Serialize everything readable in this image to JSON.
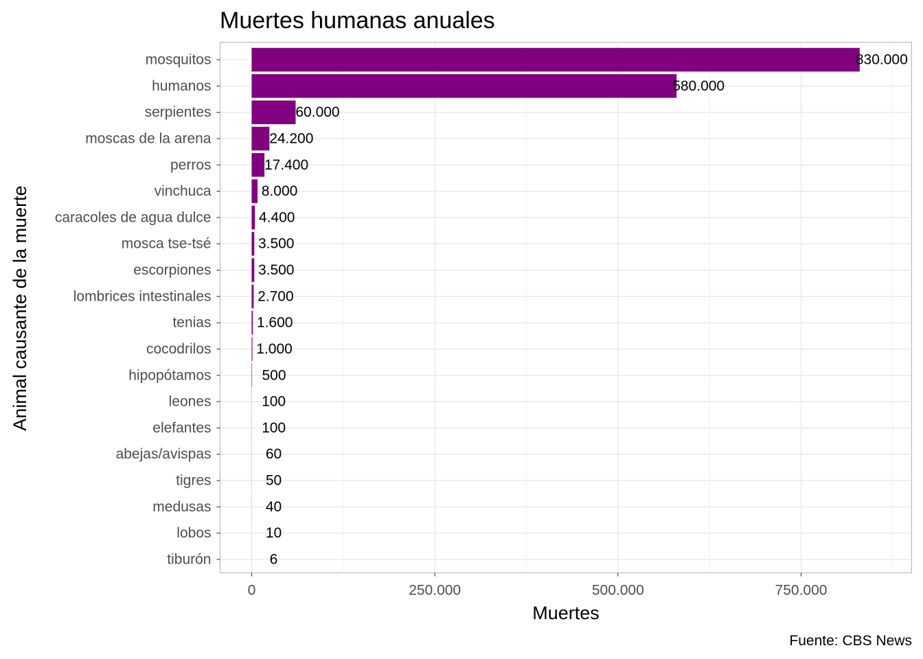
{
  "chart_data": {
    "type": "bar",
    "orientation": "horizontal",
    "title": "Muertes humanas anuales",
    "xlabel": "Muertes",
    "ylabel": "Animal causante de la muerte",
    "caption": "Fuente: CBS News",
    "xlim": [
      -85000,
      900000
    ],
    "x_ticks": [
      0,
      250000,
      500000,
      750000
    ],
    "x_tick_labels": [
      "0",
      "250.000",
      "500.000",
      "750.000"
    ],
    "grid": true,
    "bar_color": "#800080",
    "categories": [
      "mosquitos",
      "humanos",
      "serpientes",
      "moscas de la arena",
      "perros",
      "vinchuca",
      "caracoles de agua dulce",
      "mosca tse-tsé",
      "escorpiones",
      "lombrices intestinales",
      "tenias",
      "cocodrilos",
      "hipopótamos",
      "leones",
      "elefantes",
      "abejas/avispas",
      "tigres",
      "medusas",
      "lobos",
      "tiburón"
    ],
    "values": [
      830000,
      580000,
      60000,
      24200,
      17400,
      8000,
      4400,
      3500,
      3500,
      2700,
      1600,
      1000,
      500,
      100,
      100,
      60,
      50,
      40,
      10,
      6
    ],
    "value_labels": [
      "830.000",
      "580.000",
      "60.000",
      "24.200",
      "17.400",
      "8.000",
      "4.400",
      "3.500",
      "3.500",
      "2.700",
      "1.600",
      "1.000",
      "500",
      "100",
      "100",
      "60",
      "50",
      "40",
      "10",
      "6"
    ]
  }
}
